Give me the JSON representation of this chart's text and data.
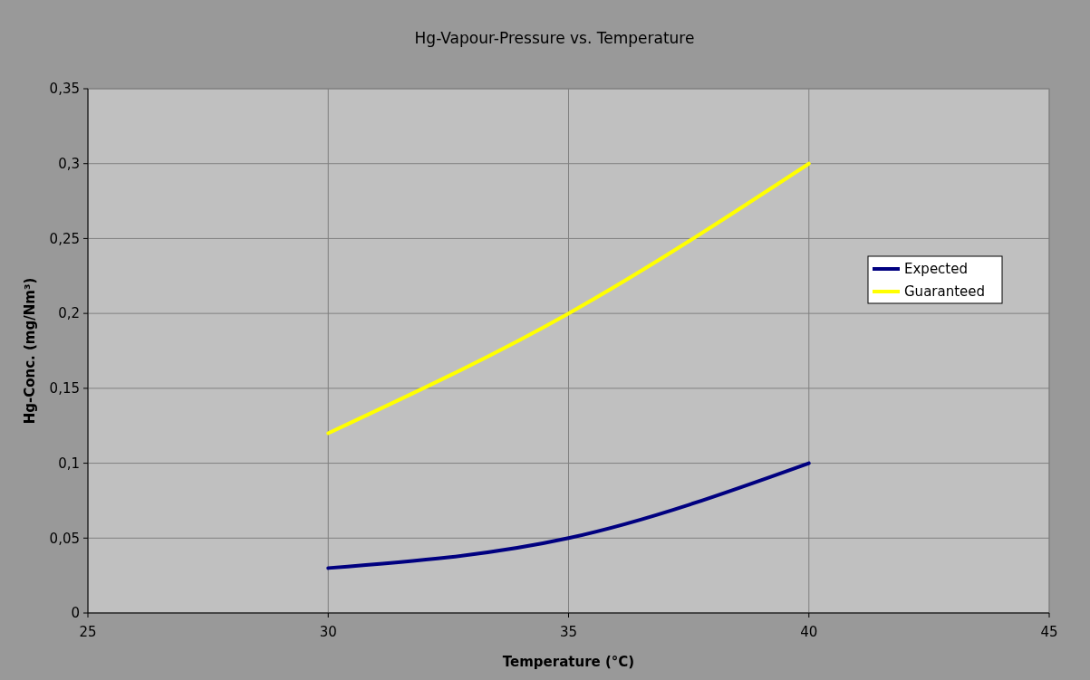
{
  "chart_data": {
    "type": "line",
    "title": "Hg-Vapour-Pressure vs. Temperature",
    "xlabel": "Temperature (°C)",
    "ylabel": "Hg-Conc. (mg/Nm³)",
    "x": [
      30,
      35,
      40
    ],
    "series": [
      {
        "name": "Expected",
        "color": "#000080",
        "values": [
          0.03,
          0.05,
          0.1
        ]
      },
      {
        "name": "Guaranteed",
        "color": "#ffff00",
        "values": [
          0.12,
          0.2,
          0.3
        ]
      }
    ],
    "xlim": [
      25,
      45
    ],
    "xticks": [
      25,
      30,
      35,
      40,
      45
    ],
    "ylim": [
      0,
      0.35
    ],
    "yticks": [
      0,
      {
        "value": 0.05,
        "label": "0,05"
      },
      {
        "value": 0.1,
        "label": "0,1"
      },
      {
        "value": 0.15,
        "label": "0,15"
      },
      {
        "value": 0.2,
        "label": "0,2"
      },
      {
        "value": 0.25,
        "label": "0,25"
      },
      {
        "value": 0.3,
        "label": "0,3"
      },
      {
        "value": 0.35,
        "label": "0,35"
      }
    ],
    "grid": true,
    "legend": "right",
    "marker": "none",
    "line_style": "solid"
  }
}
